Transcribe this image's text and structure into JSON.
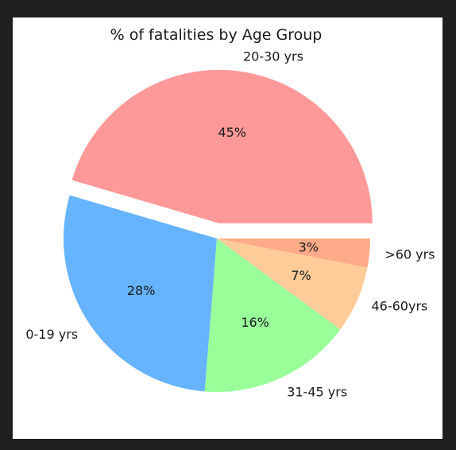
{
  "chart_data": {
    "type": "pie",
    "title": "% of fatalities by Age Group",
    "categories": [
      "20-30 yrs",
      "0-19 yrs",
      "31-45 yrs",
      "46-60yrs",
      ">60 yrs"
    ],
    "values": [
      45,
      28,
      16,
      7,
      3
    ],
    "value_labels": [
      "45%",
      "28%",
      "16%",
      "7%",
      "3%"
    ],
    "colors": [
      "#ff9999",
      "#66b3ff",
      "#99ff99",
      "#ffcc99",
      "#ffaa88"
    ],
    "exploded": [
      true,
      false,
      false,
      false,
      false
    ],
    "start_angle_deg": 0,
    "direction": "counterclockwise"
  }
}
